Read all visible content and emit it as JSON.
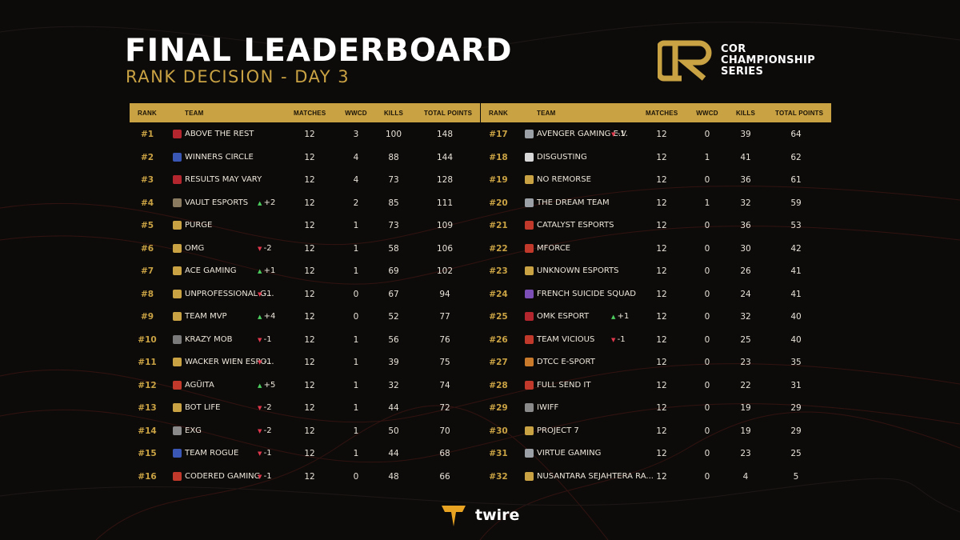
{
  "title": "FINAL LEADERBOARD",
  "subtitle": "RANK DECISION - DAY 3",
  "brand": {
    "logo_letters": "CR",
    "name_lines": [
      "COR",
      "CHAMPIONSHIP",
      "SERIES"
    ],
    "gold": "#c9a243"
  },
  "footer": {
    "brand": "twire",
    "icon": "twire-logo-icon"
  },
  "colors": {
    "background": "#0d0b0a",
    "header": "#c9a243",
    "rank": "#c9a243",
    "up": "#4ccf5e",
    "down": "#e2384d"
  },
  "columns": {
    "rank": "RANK",
    "team": "TEAM",
    "matches": "MATCHES",
    "wwcd": "WWCD",
    "kills": "KILLS",
    "total": "TOTAL POINTS"
  },
  "left": [
    {
      "rank": "#1",
      "team": "ABOVE THE REST",
      "icon": "#b3262e",
      "change": "",
      "matches": "12",
      "wwcd": "3",
      "kills": "100",
      "total": "148"
    },
    {
      "rank": "#2",
      "team": "WINNERS CIRCLE",
      "icon": "#3a57b5",
      "change": "",
      "matches": "12",
      "wwcd": "4",
      "kills": "88",
      "total": "144"
    },
    {
      "rank": "#3",
      "team": "RESULTS MAY VARY",
      "icon": "#b3262e",
      "change": "",
      "matches": "12",
      "wwcd": "4",
      "kills": "73",
      "total": "128"
    },
    {
      "rank": "#4",
      "team": "VAULT ESPORTS",
      "icon": "#8a7a60",
      "change": "+2",
      "dir": "up",
      "matches": "12",
      "wwcd": "2",
      "kills": "85",
      "total": "111"
    },
    {
      "rank": "#5",
      "team": "PURGE",
      "icon": "#c9a243",
      "change": "",
      "matches": "12",
      "wwcd": "1",
      "kills": "73",
      "total": "109"
    },
    {
      "rank": "#6",
      "team": "OMG",
      "icon": "#c9a243",
      "change": "-2",
      "dir": "down",
      "matches": "12",
      "wwcd": "1",
      "kills": "58",
      "total": "106"
    },
    {
      "rank": "#7",
      "team": "ACE GAMING",
      "icon": "#c9a243",
      "change": "+1",
      "dir": "up",
      "matches": "12",
      "wwcd": "1",
      "kills": "69",
      "total": "102"
    },
    {
      "rank": "#8",
      "team": "UNPROFESSIONAL G...",
      "icon": "#c9a243",
      "change": "-1",
      "dir": "down",
      "matches": "12",
      "wwcd": "0",
      "kills": "67",
      "total": "94"
    },
    {
      "rank": "#9",
      "team": "TEAM MVP",
      "icon": "#c9a243",
      "change": "+4",
      "dir": "up",
      "matches": "12",
      "wwcd": "0",
      "kills": "52",
      "total": "77"
    },
    {
      "rank": "#10",
      "team": "KRAZY MOB",
      "icon": "#7a7a7a",
      "change": "-1",
      "dir": "down",
      "matches": "12",
      "wwcd": "1",
      "kills": "56",
      "total": "76"
    },
    {
      "rank": "#11",
      "team": "WACKER WIEN ESPO...",
      "icon": "#c9a243",
      "change": "-1",
      "dir": "down",
      "matches": "12",
      "wwcd": "1",
      "kills": "39",
      "total": "75"
    },
    {
      "rank": "#12",
      "team": "AGÜITA",
      "icon": "#c0392b",
      "change": "+5",
      "dir": "up",
      "matches": "12",
      "wwcd": "1",
      "kills": "32",
      "total": "74"
    },
    {
      "rank": "#13",
      "team": "BOT LIFE",
      "icon": "#c9a243",
      "change": "-2",
      "dir": "down",
      "matches": "12",
      "wwcd": "1",
      "kills": "44",
      "total": "72"
    },
    {
      "rank": "#14",
      "team": "EXG",
      "icon": "#8a8a8a",
      "change": "-2",
      "dir": "down",
      "matches": "12",
      "wwcd": "1",
      "kills": "50",
      "total": "70"
    },
    {
      "rank": "#15",
      "team": "TEAM ROGUE",
      "icon": "#3a57b5",
      "change": "-1",
      "dir": "down",
      "matches": "12",
      "wwcd": "1",
      "kills": "44",
      "total": "68"
    },
    {
      "rank": "#16",
      "team": "CODERED GAMING",
      "icon": "#c0392b",
      "change": "-1",
      "dir": "down",
      "matches": "12",
      "wwcd": "0",
      "kills": "48",
      "total": "66"
    }
  ],
  "right": [
    {
      "rank": "#17",
      "team": "AVENGER GAMING E.V.",
      "icon": "#9aa0a6",
      "change": "-1",
      "dir": "down",
      "matches": "12",
      "wwcd": "0",
      "kills": "39",
      "total": "64"
    },
    {
      "rank": "#18",
      "team": "DISGUSTING",
      "icon": "#d8d8d8",
      "change": "",
      "matches": "12",
      "wwcd": "1",
      "kills": "41",
      "total": "62"
    },
    {
      "rank": "#19",
      "team": "NO REMORSE",
      "icon": "#c9a243",
      "change": "",
      "matches": "12",
      "wwcd": "0",
      "kills": "36",
      "total": "61"
    },
    {
      "rank": "#20",
      "team": "THE DREAM TEAM",
      "icon": "#9aa0a6",
      "change": "",
      "matches": "12",
      "wwcd": "1",
      "kills": "32",
      "total": "59"
    },
    {
      "rank": "#21",
      "team": "CATALYST ESPORTS",
      "icon": "#c0392b",
      "change": "",
      "matches": "12",
      "wwcd": "0",
      "kills": "36",
      "total": "53"
    },
    {
      "rank": "#22",
      "team": "MFORCE",
      "icon": "#c0392b",
      "change": "",
      "matches": "12",
      "wwcd": "0",
      "kills": "30",
      "total": "42"
    },
    {
      "rank": "#23",
      "team": "UNKNOWN ESPORTS",
      "icon": "#c9a243",
      "change": "",
      "matches": "12",
      "wwcd": "0",
      "kills": "26",
      "total": "41"
    },
    {
      "rank": "#24",
      "team": "FRENCH SUICIDE SQUAD",
      "icon": "#7b4fb5",
      "change": "",
      "matches": "12",
      "wwcd": "0",
      "kills": "24",
      "total": "41"
    },
    {
      "rank": "#25",
      "team": "OMK ESPORT",
      "icon": "#b3262e",
      "change": "+1",
      "dir": "up",
      "matches": "12",
      "wwcd": "0",
      "kills": "32",
      "total": "40"
    },
    {
      "rank": "#26",
      "team": "TEAM VICIOUS",
      "icon": "#c0392b",
      "change": "-1",
      "dir": "down",
      "matches": "12",
      "wwcd": "0",
      "kills": "25",
      "total": "40"
    },
    {
      "rank": "#27",
      "team": "DTCC E-SPORT",
      "icon": "#c97a2b",
      "change": "",
      "matches": "12",
      "wwcd": "0",
      "kills": "23",
      "total": "35"
    },
    {
      "rank": "#28",
      "team": "FULL SEND IT",
      "icon": "#c0392b",
      "change": "",
      "matches": "12",
      "wwcd": "0",
      "kills": "22",
      "total": "31"
    },
    {
      "rank": "#29",
      "team": "IWIFF",
      "icon": "#8a8a8a",
      "change": "",
      "matches": "12",
      "wwcd": "0",
      "kills": "19",
      "total": "29"
    },
    {
      "rank": "#30",
      "team": "PROJECT 7",
      "icon": "#c9a243",
      "change": "",
      "matches": "12",
      "wwcd": "0",
      "kills": "19",
      "total": "29"
    },
    {
      "rank": "#31",
      "team": "VIRTUE GAMING",
      "icon": "#9aa0a6",
      "change": "",
      "matches": "12",
      "wwcd": "0",
      "kills": "23",
      "total": "25"
    },
    {
      "rank": "#32",
      "team": "NUSANTARA SEJAHTERA RA...",
      "icon": "#c9a243",
      "change": "",
      "matches": "12",
      "wwcd": "0",
      "kills": "4",
      "total": "5"
    }
  ]
}
